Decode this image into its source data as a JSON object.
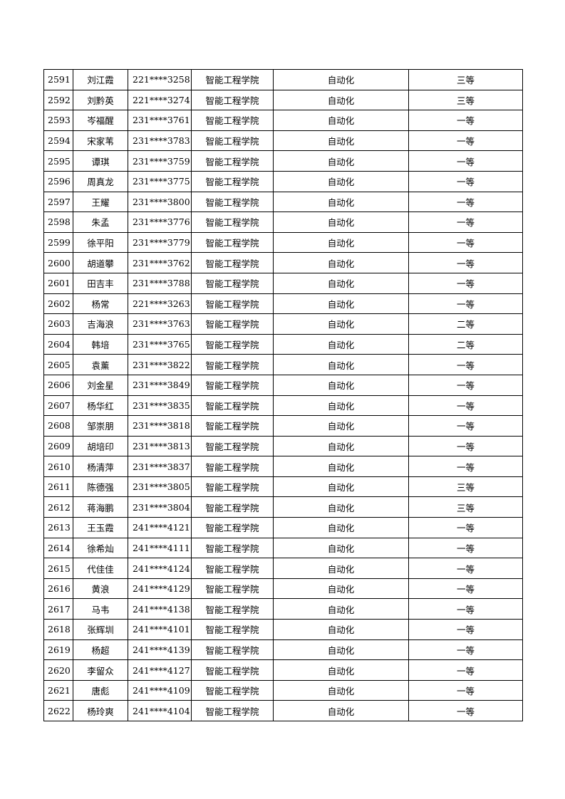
{
  "table": {
    "rows": [
      [
        "2591",
        "刘江霞",
        "221****3258",
        "智能工程学院",
        "自动化",
        "三等"
      ],
      [
        "2592",
        "刘黔英",
        "221****3274",
        "智能工程学院",
        "自动化",
        "三等"
      ],
      [
        "2593",
        "岑福醒",
        "231****3761",
        "智能工程学院",
        "自动化",
        "一等"
      ],
      [
        "2594",
        "宋家苇",
        "231****3783",
        "智能工程学院",
        "自动化",
        "一等"
      ],
      [
        "2595",
        "谭琪",
        "231****3759",
        "智能工程学院",
        "自动化",
        "一等"
      ],
      [
        "2596",
        "周真龙",
        "231****3775",
        "智能工程学院",
        "自动化",
        "一等"
      ],
      [
        "2597",
        "王耀",
        "231****3800",
        "智能工程学院",
        "自动化",
        "一等"
      ],
      [
        "2598",
        "朱孟",
        "231****3776",
        "智能工程学院",
        "自动化",
        "一等"
      ],
      [
        "2599",
        "徐平阳",
        "231****3779",
        "智能工程学院",
        "自动化",
        "一等"
      ],
      [
        "2600",
        "胡道攀",
        "231****3762",
        "智能工程学院",
        "自动化",
        "一等"
      ],
      [
        "2601",
        "田吉丰",
        "231****3788",
        "智能工程学院",
        "自动化",
        "一等"
      ],
      [
        "2602",
        "杨常",
        "221****3263",
        "智能工程学院",
        "自动化",
        "一等"
      ],
      [
        "2603",
        "吉海浪",
        "231****3763",
        "智能工程学院",
        "自动化",
        "二等"
      ],
      [
        "2604",
        "韩培",
        "231****3765",
        "智能工程学院",
        "自动化",
        "二等"
      ],
      [
        "2605",
        "袁薰",
        "231****3822",
        "智能工程学院",
        "自动化",
        "一等"
      ],
      [
        "2606",
        "刘金星",
        "231****3849",
        "智能工程学院",
        "自动化",
        "一等"
      ],
      [
        "2607",
        "杨华红",
        "231****3835",
        "智能工程学院",
        "自动化",
        "一等"
      ],
      [
        "2608",
        "邹崇朋",
        "231****3818",
        "智能工程学院",
        "自动化",
        "一等"
      ],
      [
        "2609",
        "胡培印",
        "231****3813",
        "智能工程学院",
        "自动化",
        "一等"
      ],
      [
        "2610",
        "杨清萍",
        "231****3837",
        "智能工程学院",
        "自动化",
        "一等"
      ],
      [
        "2611",
        "陈德强",
        "231****3805",
        "智能工程学院",
        "自动化",
        "三等"
      ],
      [
        "2612",
        "蒋海鹏",
        "231****3804",
        "智能工程学院",
        "自动化",
        "三等"
      ],
      [
        "2613",
        "王玉霞",
        "241****4121",
        "智能工程学院",
        "自动化",
        "一等"
      ],
      [
        "2614",
        "徐希灿",
        "241****4111",
        "智能工程学院",
        "自动化",
        "一等"
      ],
      [
        "2615",
        "代佳佳",
        "241****4124",
        "智能工程学院",
        "自动化",
        "一等"
      ],
      [
        "2616",
        "黄浪",
        "241****4129",
        "智能工程学院",
        "自动化",
        "一等"
      ],
      [
        "2617",
        "马韦",
        "241****4138",
        "智能工程学院",
        "自动化",
        "一等"
      ],
      [
        "2618",
        "张辉圳",
        "241****4101",
        "智能工程学院",
        "自动化",
        "一等"
      ],
      [
        "2619",
        "杨超",
        "241****4139",
        "智能工程学院",
        "自动化",
        "一等"
      ],
      [
        "2620",
        "李留众",
        "241****4127",
        "智能工程学院",
        "自动化",
        "一等"
      ],
      [
        "2621",
        "唐彪",
        "241****4109",
        "智能工程学院",
        "自动化",
        "一等"
      ],
      [
        "2622",
        "杨玲爽",
        "241****4104",
        "智能工程学院",
        "自动化",
        "一等"
      ]
    ]
  }
}
